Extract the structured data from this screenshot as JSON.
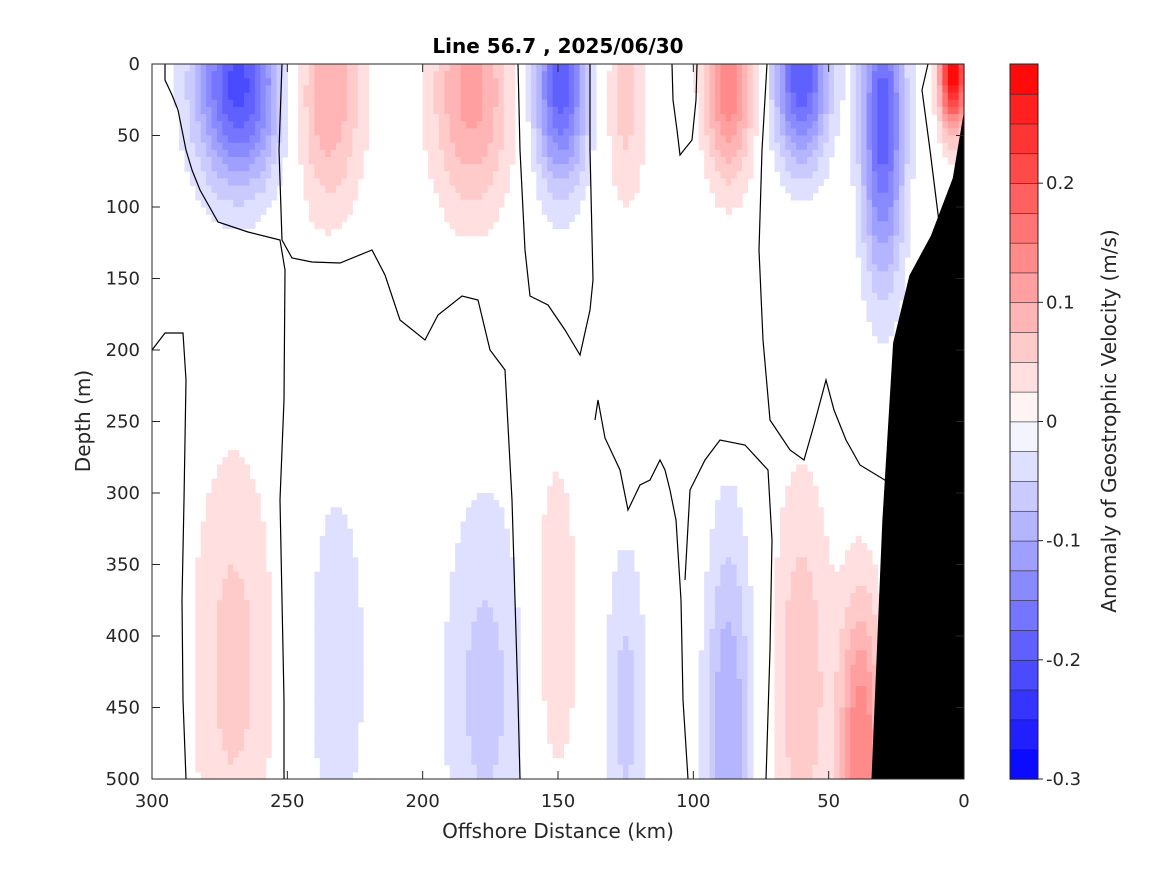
{
  "chart_data": {
    "type": "heatmap",
    "title": "Line 56.7 , 2025/06/30",
    "xlabel": "Offshore Distance (km)",
    "ylabel": "Depth (m)",
    "colorbar_label": "Anomaly of Geostrophic Velocity (m/s)",
    "xlim": [
      300,
      0
    ],
    "ylim": [
      0,
      500
    ],
    "x_reversed": true,
    "y_reversed": true,
    "xticks": [
      300,
      250,
      200,
      150,
      100,
      50,
      0
    ],
    "yticks": [
      0,
      50,
      100,
      150,
      200,
      250,
      300,
      350,
      400,
      450,
      500
    ],
    "colorbar": {
      "range": [
        -0.3,
        0.3
      ],
      "levels": 24,
      "ticks": [
        -0.3,
        -0.2,
        -0.1,
        0,
        0.1,
        0.2
      ],
      "tick_labels": [
        "-0.3",
        "-0.2",
        "-0.1",
        "0",
        "0.1",
        "0.2"
      ],
      "negative_color": "#0000ff",
      "positive_color": "#ff0000",
      "zero_color": "#ffffff"
    },
    "bathymetry_color": "#000000",
    "bathymetry": [
      [
        34,
        500
      ],
      [
        30,
        320
      ],
      [
        26,
        195
      ],
      [
        20,
        148
      ],
      [
        12,
        120
      ],
      [
        4,
        80
      ],
      [
        0,
        35
      ]
    ],
    "features": [
      {
        "x": 268,
        "depth": 15,
        "width": 16,
        "depth_scale": 70,
        "value": -0.21
      },
      {
        "x": 235,
        "depth": 20,
        "width": 13,
        "depth_scale": 85,
        "value": 0.1
      },
      {
        "x": 182,
        "depth": 20,
        "width": 15,
        "depth_scale": 85,
        "value": 0.11
      },
      {
        "x": 149,
        "depth": 15,
        "width": 10,
        "depth_scale": 70,
        "value": -0.19
      },
      {
        "x": 125,
        "depth": 25,
        "width": 8,
        "depth_scale": 80,
        "value": 0.06
      },
      {
        "x": 87,
        "depth": 10,
        "width": 9,
        "depth_scale": 70,
        "value": 0.15
      },
      {
        "x": 60,
        "depth": 10,
        "width": 10,
        "depth_scale": 60,
        "value": -0.2
      },
      {
        "x": 30,
        "depth": 40,
        "width": 8,
        "depth_scale": 110,
        "value": -0.19
      },
      {
        "x": 4,
        "depth": 5,
        "width": 5,
        "depth_scale": 40,
        "value": 0.3
      },
      {
        "x": 270,
        "depth": 420,
        "width": 16,
        "depth_scale": 160,
        "value": 0.06
      },
      {
        "x": 232,
        "depth": 420,
        "width": 14,
        "depth_scale": 160,
        "value": -0.04
      },
      {
        "x": 177,
        "depth": 440,
        "width": 16,
        "depth_scale": 150,
        "value": -0.06
      },
      {
        "x": 151,
        "depth": 390,
        "width": 9,
        "depth_scale": 130,
        "value": 0.05
      },
      {
        "x": 125,
        "depth": 450,
        "width": 8,
        "depth_scale": 120,
        "value": -0.06
      },
      {
        "x": 87,
        "depth": 470,
        "width": 9,
        "depth_scale": 150,
        "value": -0.1
      },
      {
        "x": 60,
        "depth": 430,
        "width": 11,
        "depth_scale": 150,
        "value": 0.07
      },
      {
        "x": 38,
        "depth": 480,
        "width": 8,
        "depth_scale": 110,
        "value": 0.15
      }
    ]
  }
}
